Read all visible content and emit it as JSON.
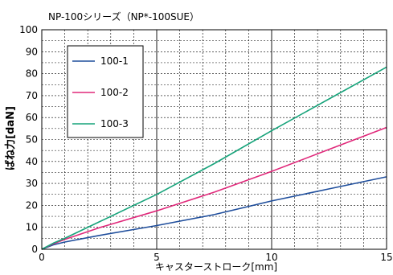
{
  "chart_data": {
    "type": "line",
    "title": "NP-100シリーズ（NP*-100SUE）",
    "xlabel": "キャスターストローク[mm]",
    "ylabel": "ばね力[daN]",
    "xlim": [
      0,
      15
    ],
    "ylim": [
      0,
      100
    ],
    "x_ticks": [
      0,
      5,
      10,
      15
    ],
    "y_ticks": [
      0,
      10,
      20,
      30,
      40,
      50,
      60,
      70,
      80,
      90,
      100
    ],
    "x_minor_step": 1,
    "y_minor_step": 5,
    "grid": true,
    "legend_position": "top-left",
    "series": [
      {
        "name": "100-1",
        "color": "#1f4e9c",
        "x": [
          0,
          0.5,
          1,
          2.5,
          5,
          7.5,
          10,
          12.5,
          15
        ],
        "y": [
          0,
          2,
          3.3,
          6.3,
          10.8,
          15.8,
          22,
          27.5,
          33
        ]
      },
      {
        "name": "100-2",
        "color": "#e0287a",
        "x": [
          0,
          0.5,
          1,
          2.5,
          5,
          7.5,
          10,
          12.5,
          15
        ],
        "y": [
          0,
          2.5,
          4.5,
          9.8,
          17.5,
          26,
          35.5,
          45.5,
          55.5
        ]
      },
      {
        "name": "100-3",
        "color": "#16a37a",
        "x": [
          0,
          0.5,
          1,
          2.5,
          5,
          7.5,
          10,
          12.5,
          15
        ],
        "y": [
          0,
          2.8,
          5,
          12.5,
          25,
          39,
          54,
          68.5,
          83
        ]
      }
    ]
  }
}
